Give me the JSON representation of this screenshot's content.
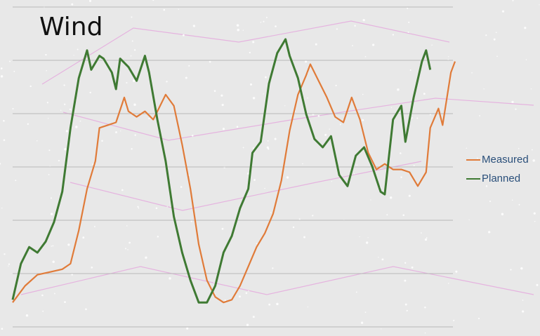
{
  "chart_data": {
    "type": "line",
    "title": "Wind",
    "xlabel": "",
    "ylabel": "",
    "grid": true,
    "legend_position": "right",
    "ylim": [
      0,
      100
    ],
    "series": [
      {
        "name": "Measured",
        "color": "#e07b39",
        "points": [
          [
            0,
            4
          ],
          [
            3,
            10
          ],
          [
            6,
            14
          ],
          [
            9,
            15
          ],
          [
            12,
            16
          ],
          [
            14,
            18
          ],
          [
            16,
            30
          ],
          [
            18,
            45
          ],
          [
            20,
            55
          ],
          [
            21,
            67
          ],
          [
            23,
            68
          ],
          [
            25,
            69
          ],
          [
            27,
            78
          ],
          [
            28,
            73
          ],
          [
            30,
            71
          ],
          [
            32,
            73
          ],
          [
            34,
            70
          ],
          [
            35,
            73
          ],
          [
            37,
            79
          ],
          [
            39,
            75
          ],
          [
            41,
            61
          ],
          [
            43,
            45
          ],
          [
            45,
            25
          ],
          [
            47,
            12
          ],
          [
            49,
            6
          ],
          [
            51,
            4
          ],
          [
            53,
            5
          ],
          [
            55,
            10
          ],
          [
            57,
            17
          ],
          [
            59,
            24
          ],
          [
            61,
            29
          ],
          [
            63,
            36
          ],
          [
            65,
            48
          ],
          [
            67,
            66
          ],
          [
            69,
            79
          ],
          [
            71,
            86
          ],
          [
            72,
            90
          ],
          [
            74,
            84
          ],
          [
            76,
            78
          ],
          [
            78,
            71
          ],
          [
            80,
            69
          ],
          [
            82,
            78
          ],
          [
            84,
            70
          ],
          [
            86,
            58
          ],
          [
            88,
            52
          ],
          [
            90,
            54
          ],
          [
            92,
            52
          ],
          [
            94,
            52
          ],
          [
            96,
            51
          ],
          [
            98,
            46
          ],
          [
            100,
            51
          ],
          [
            101,
            67
          ],
          [
            103,
            74
          ],
          [
            104,
            68
          ],
          [
            106,
            87
          ],
          [
            107,
            91
          ]
        ]
      },
      {
        "name": "Planned",
        "color": "#3f7a33",
        "points": [
          [
            0,
            5
          ],
          [
            2,
            18
          ],
          [
            4,
            24
          ],
          [
            6,
            22
          ],
          [
            8,
            26
          ],
          [
            10,
            33
          ],
          [
            12,
            44
          ],
          [
            14,
            67
          ],
          [
            16,
            85
          ],
          [
            18,
            95
          ],
          [
            19,
            88
          ],
          [
            21,
            93
          ],
          [
            22,
            92
          ],
          [
            24,
            87
          ],
          [
            25,
            81
          ],
          [
            26,
            92
          ],
          [
            28,
            89
          ],
          [
            30,
            84
          ],
          [
            32,
            93
          ],
          [
            33,
            87
          ],
          [
            35,
            70
          ],
          [
            37,
            55
          ],
          [
            39,
            35
          ],
          [
            41,
            22
          ],
          [
            43,
            12
          ],
          [
            45,
            4
          ],
          [
            47,
            4
          ],
          [
            49,
            10
          ],
          [
            51,
            22
          ],
          [
            53,
            28
          ],
          [
            55,
            38
          ],
          [
            57,
            45
          ],
          [
            58,
            58
          ],
          [
            60,
            62
          ],
          [
            62,
            83
          ],
          [
            64,
            94
          ],
          [
            66,
            99
          ],
          [
            67,
            93
          ],
          [
            69,
            85
          ],
          [
            71,
            72
          ],
          [
            73,
            63
          ],
          [
            75,
            60
          ],
          [
            77,
            64
          ],
          [
            79,
            50
          ],
          [
            81,
            46
          ],
          [
            83,
            57
          ],
          [
            85,
            60
          ],
          [
            87,
            53
          ],
          [
            89,
            44
          ],
          [
            90,
            43
          ],
          [
            92,
            70
          ],
          [
            94,
            75
          ],
          [
            95,
            62
          ],
          [
            97,
            78
          ],
          [
            99,
            91
          ],
          [
            100,
            95
          ],
          [
            101,
            88
          ]
        ]
      }
    ]
  }
}
